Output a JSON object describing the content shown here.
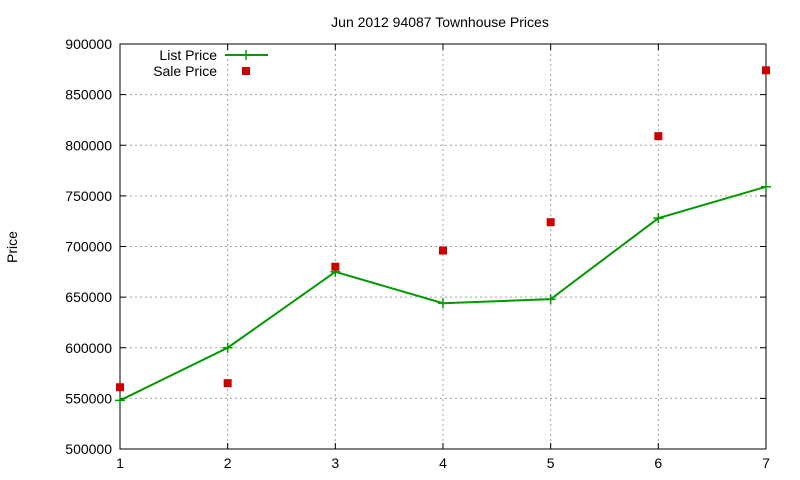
{
  "chart_data": {
    "type": "line",
    "title": "Jun 2012 94087 Townhouse Prices",
    "xlabel": "",
    "ylabel": "Price",
    "x": [
      1,
      2,
      3,
      4,
      5,
      6,
      7
    ],
    "xlim": [
      1,
      7
    ],
    "ylim": [
      500000,
      900000
    ],
    "x_ticks": [
      "1",
      "2",
      "3",
      "4",
      "5",
      "6",
      "7"
    ],
    "y_ticks": [
      "500000",
      "550000",
      "600000",
      "650000",
      "700000",
      "750000",
      "800000",
      "850000",
      "900000"
    ],
    "grid": true,
    "legend_position": "top-left",
    "series": [
      {
        "name": "List Price",
        "style": "line-with-plus-markers",
        "color": "#009900",
        "values": [
          548000,
          600000,
          675000,
          644000,
          648000,
          728000,
          759000
        ]
      },
      {
        "name": "Sale Price",
        "style": "square-markers",
        "color": "#cc0000",
        "values": [
          561000,
          565000,
          680000,
          696000,
          724000,
          809000,
          874000
        ]
      }
    ]
  }
}
